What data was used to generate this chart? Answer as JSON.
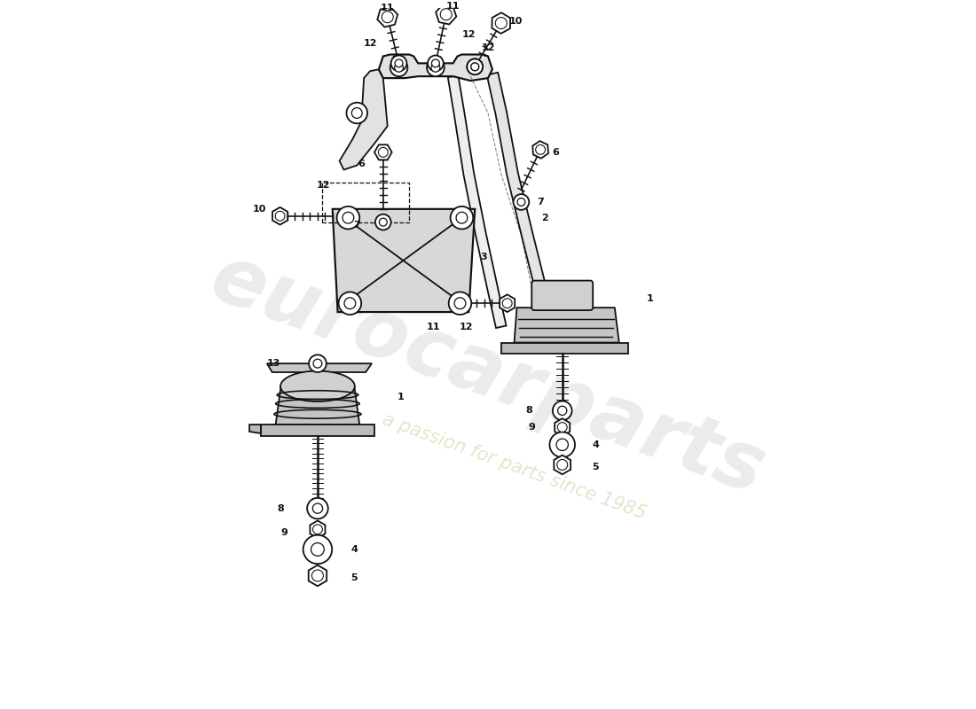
{
  "background": "#ffffff",
  "lc": "#111111",
  "fig_w": 11.0,
  "fig_h": 8.0,
  "dpi": 100,
  "wm1": "eurocarparts",
  "wm2": "a passion for parts since 1985",
  "xlim": [
    0,
    11
  ],
  "ylim": [
    0,
    8
  ]
}
